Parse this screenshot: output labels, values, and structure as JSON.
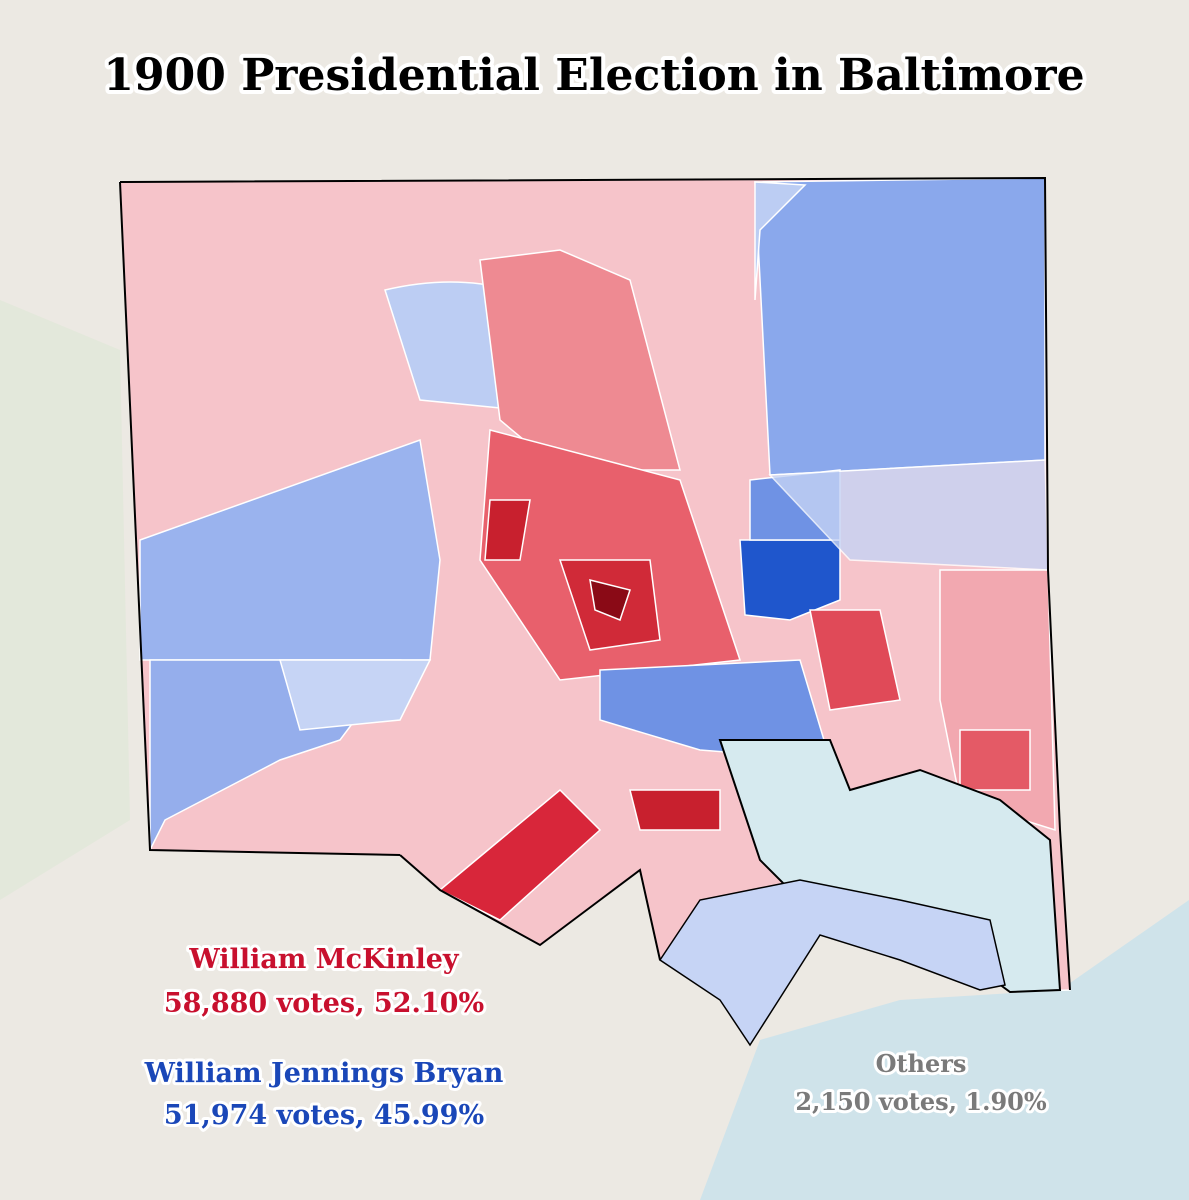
{
  "title": "1900 Presidential Election in Baltimore",
  "results": [
    {
      "candidate": "William McKinley",
      "summary": "58,880 votes, 52.10%",
      "color": "#c8102e"
    },
    {
      "candidate": "William Jennings Bryan",
      "summary": "51,974 votes, 45.99%",
      "color": "#1a47b8"
    },
    {
      "candidate": "Others",
      "summary": "2,150 votes, 1.90%",
      "color": "#7a7a7a"
    }
  ]
}
